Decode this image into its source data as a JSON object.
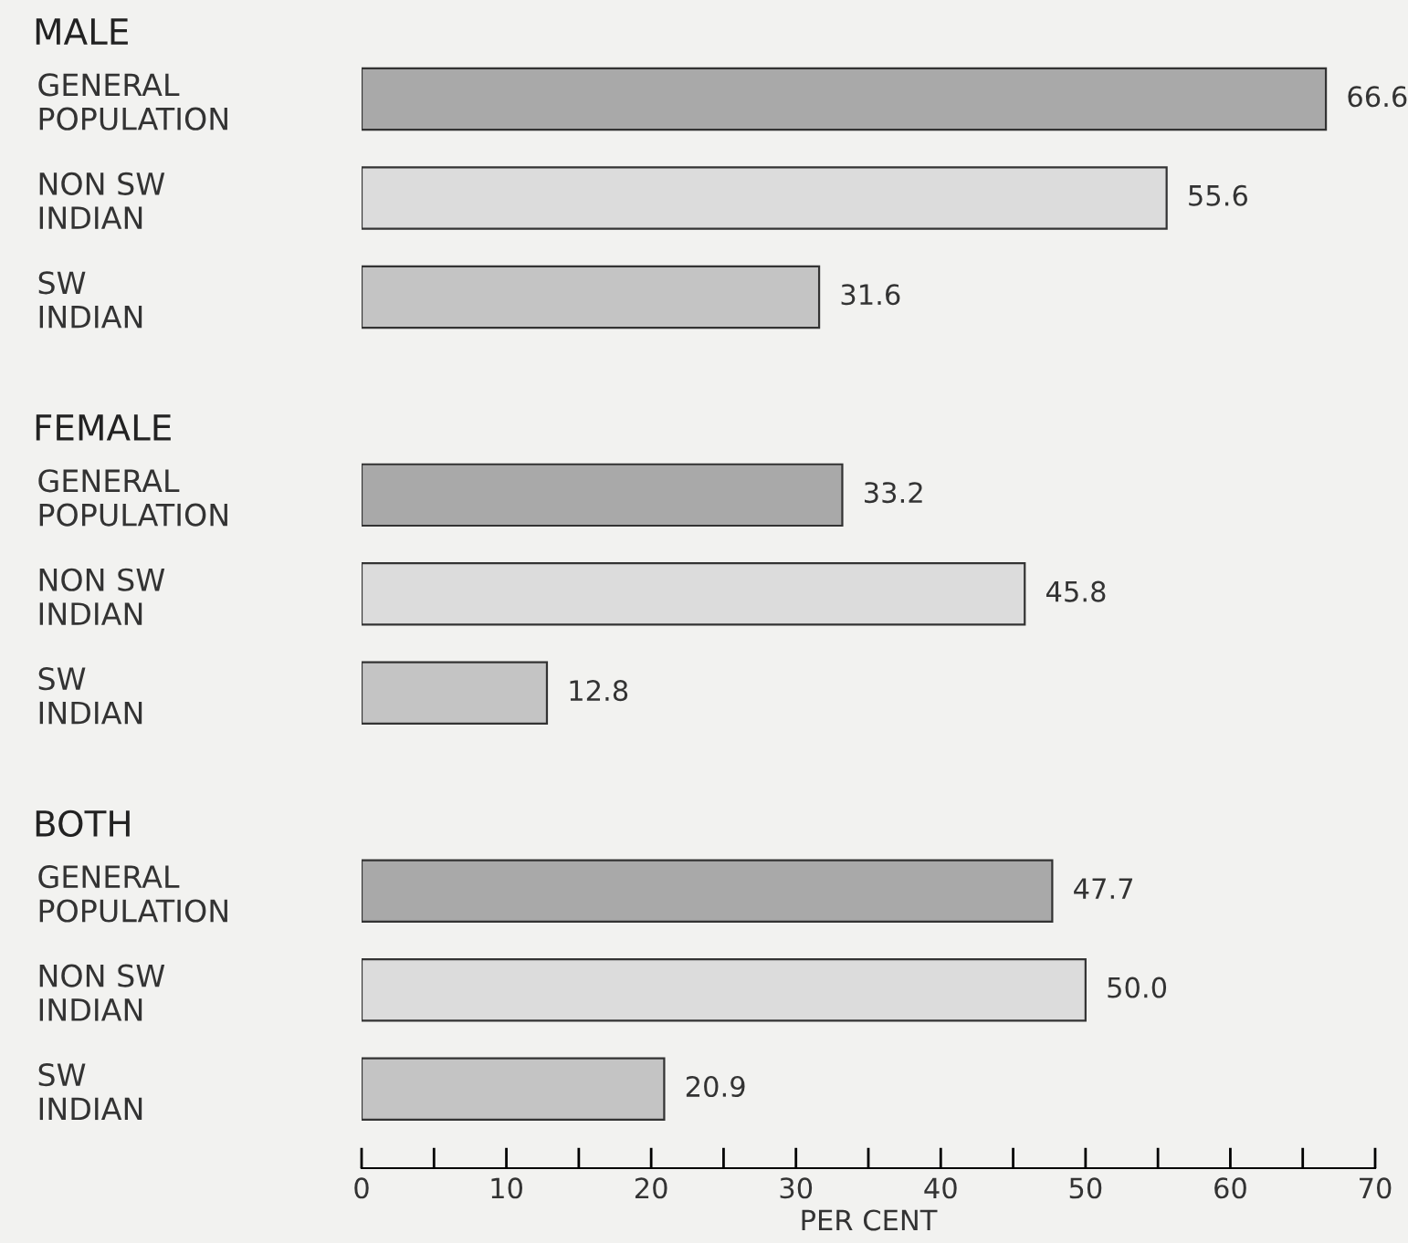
{
  "chart_data": {
    "type": "bar",
    "orientation": "horizontal",
    "categories": [
      "GENERAL\nPOPULATION",
      "NON SW\nINDIAN",
      "SW\nINDIAN",
      null,
      "GENERAL\nPOPULATION",
      "NON SW\nINDIAN",
      "SW\nINDIAN",
      null,
      "GENERAL\nPOPULATION",
      "NON SW\nINDIAN",
      "SW\nINDIAN"
    ],
    "values": [
      66.6,
      55.6,
      31.6,
      null,
      33.2,
      45.8,
      12.8,
      null,
      47.7,
      50.0,
      20.9
    ],
    "colors": [
      "#a9a9a9",
      "#dcdcdc",
      "#c4c4c4",
      null,
      "#a9a9a9",
      "#dcdcdc",
      "#c4c4c4",
      null,
      "#a9a9a9",
      "#dcdcdc",
      "#c4c4c4"
    ],
    "value_labels": [
      "66.6",
      "55.6",
      "31.6",
      null,
      "33.2",
      "45.8",
      "12.8",
      null,
      "47.7",
      "50.0",
      "20.9"
    ],
    "annotations": [
      "MALE",
      "FEMALE",
      "BOTH"
    ],
    "xlabel": "PER CENT",
    "xlim": [
      0,
      70
    ],
    "xticks": [
      0,
      {
        "value": 5,
        "label": null
      },
      10,
      {
        "value": 15,
        "label": null
      },
      20,
      {
        "value": 25,
        "label": null
      },
      30,
      {
        "value": 35,
        "label": null
      },
      40,
      {
        "value": 45,
        "label": null
      },
      50,
      {
        "value": 55,
        "label": null
      },
      60,
      {
        "value": 65,
        "label": null
      },
      70
    ],
    "grid": false,
    "legend": false
  }
}
